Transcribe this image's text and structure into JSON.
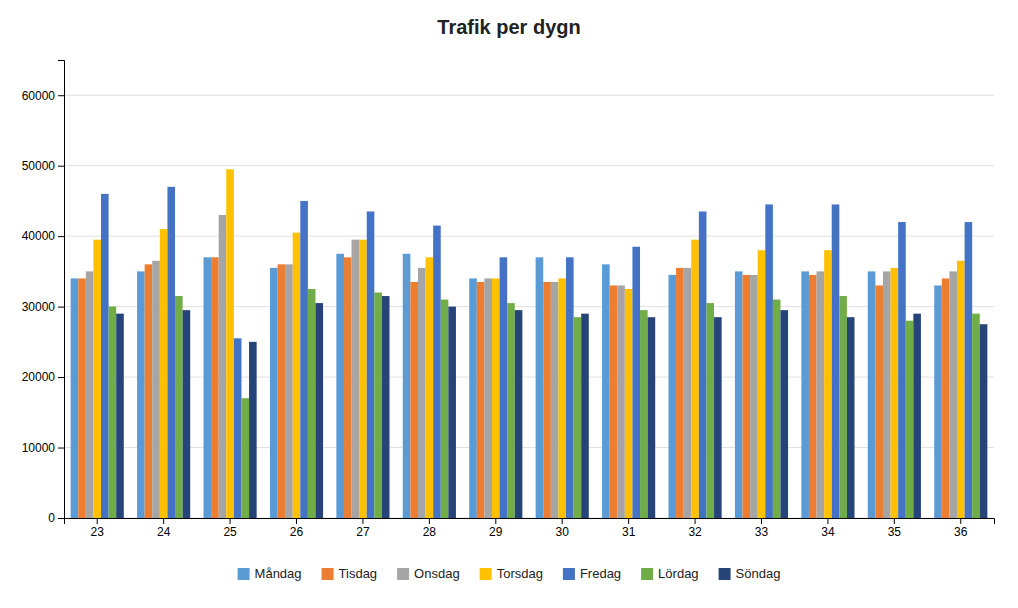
{
  "chart_data": {
    "type": "bar",
    "title": "Trafik per dygn",
    "categories": [
      23,
      24,
      25,
      26,
      27,
      28,
      29,
      30,
      31,
      32,
      33,
      34,
      35,
      36
    ],
    "series": [
      {
        "name": "Måndag",
        "color": "#5b9bd5",
        "values": [
          34000,
          35000,
          37000,
          35500,
          37500,
          37500,
          34000,
          37000,
          36000,
          34500,
          35000,
          35000,
          35000,
          33000
        ]
      },
      {
        "name": "Tisdag",
        "color": "#ed7d31",
        "values": [
          34000,
          36000,
          37000,
          36000,
          37000,
          33500,
          33500,
          33500,
          33000,
          35500,
          34500,
          34500,
          33000,
          34000
        ]
      },
      {
        "name": "Onsdag",
        "color": "#a5a5a5",
        "values": [
          35000,
          36500,
          43000,
          36000,
          39500,
          35500,
          34000,
          33500,
          33000,
          35500,
          34500,
          35000,
          35000,
          35000
        ]
      },
      {
        "name": "Torsdag",
        "color": "#ffc000",
        "values": [
          39500,
          41000,
          49500,
          40500,
          39500,
          37000,
          34000,
          34000,
          32500,
          39500,
          38000,
          38000,
          35500,
          36500
        ]
      },
      {
        "name": "Fredag",
        "color": "#4472c4",
        "values": [
          46000,
          47000,
          25500,
          45000,
          43500,
          41500,
          37000,
          37000,
          38500,
          43500,
          44500,
          44500,
          42000,
          42000
        ]
      },
      {
        "name": "Lördag",
        "color": "#70ad47",
        "values": [
          30000,
          31500,
          17000,
          32500,
          32000,
          31000,
          30500,
          28500,
          29500,
          30500,
          31000,
          31500,
          28000,
          29000
        ]
      },
      {
        "name": "Söndag",
        "color": "#264478",
        "values": [
          29000,
          29500,
          25000,
          30500,
          31500,
          30000,
          29500,
          29000,
          28500,
          28500,
          29500,
          28500,
          29000,
          27500
        ]
      }
    ],
    "ylim": [
      0,
      65000
    ],
    "yticks": [
      0,
      10000,
      20000,
      30000,
      40000,
      50000,
      60000
    ],
    "grid": true,
    "legend": "bottom"
  }
}
